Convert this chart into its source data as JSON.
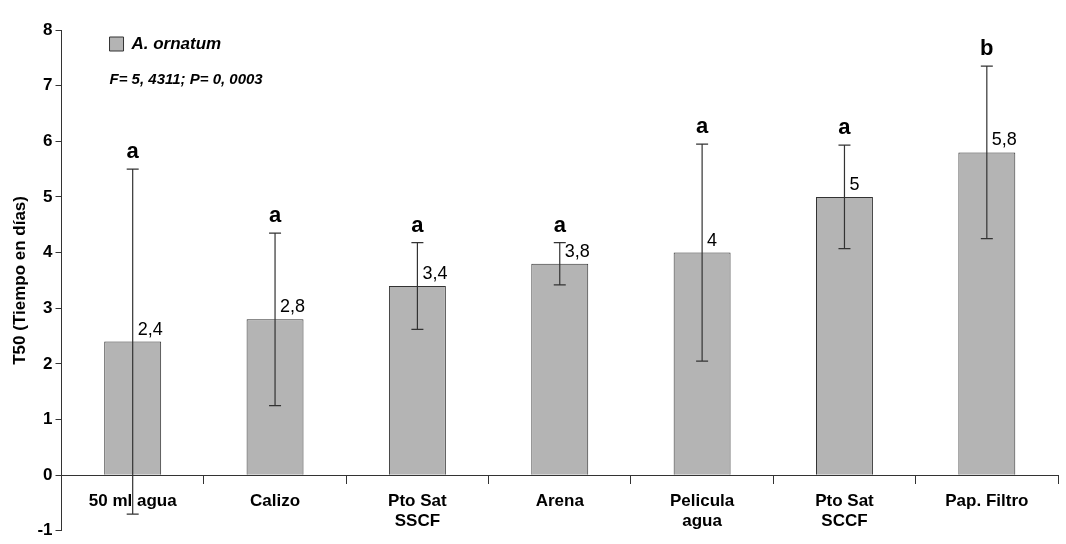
{
  "chart_data": {
    "type": "bar",
    "ylabel": "T50 (Tiempo en días)",
    "categories": [
      "50 ml agua",
      "Calizo",
      "Pto Sat SSCF",
      "Arena",
      "Pelicula agua",
      "Pto Sat SCCF",
      "Pap. Filtro"
    ],
    "series": [
      {
        "name": "A. ornatum",
        "color": "#b4b4b4",
        "values": [
          2.4,
          2.8,
          3.4,
          3.8,
          4,
          5,
          5.8
        ],
        "errors": [
          3.1,
          1.55,
          0.78,
          0.38,
          1.95,
          0.93,
          1.55
        ],
        "value_labels": [
          "2,4",
          "2,8",
          "3,4",
          "3,8",
          "4",
          "5",
          "5,8"
        ]
      }
    ],
    "ylim": [
      -1,
      8
    ],
    "yticks": [
      -1,
      0,
      1,
      2,
      3,
      4,
      5,
      6,
      7,
      8
    ],
    "grid": false,
    "legend": "top left",
    "annotations": [
      "F= 5, 4311; P= 0, 0003",
      "a",
      "a",
      "a",
      "a",
      "a",
      "a",
      "b"
    ]
  }
}
